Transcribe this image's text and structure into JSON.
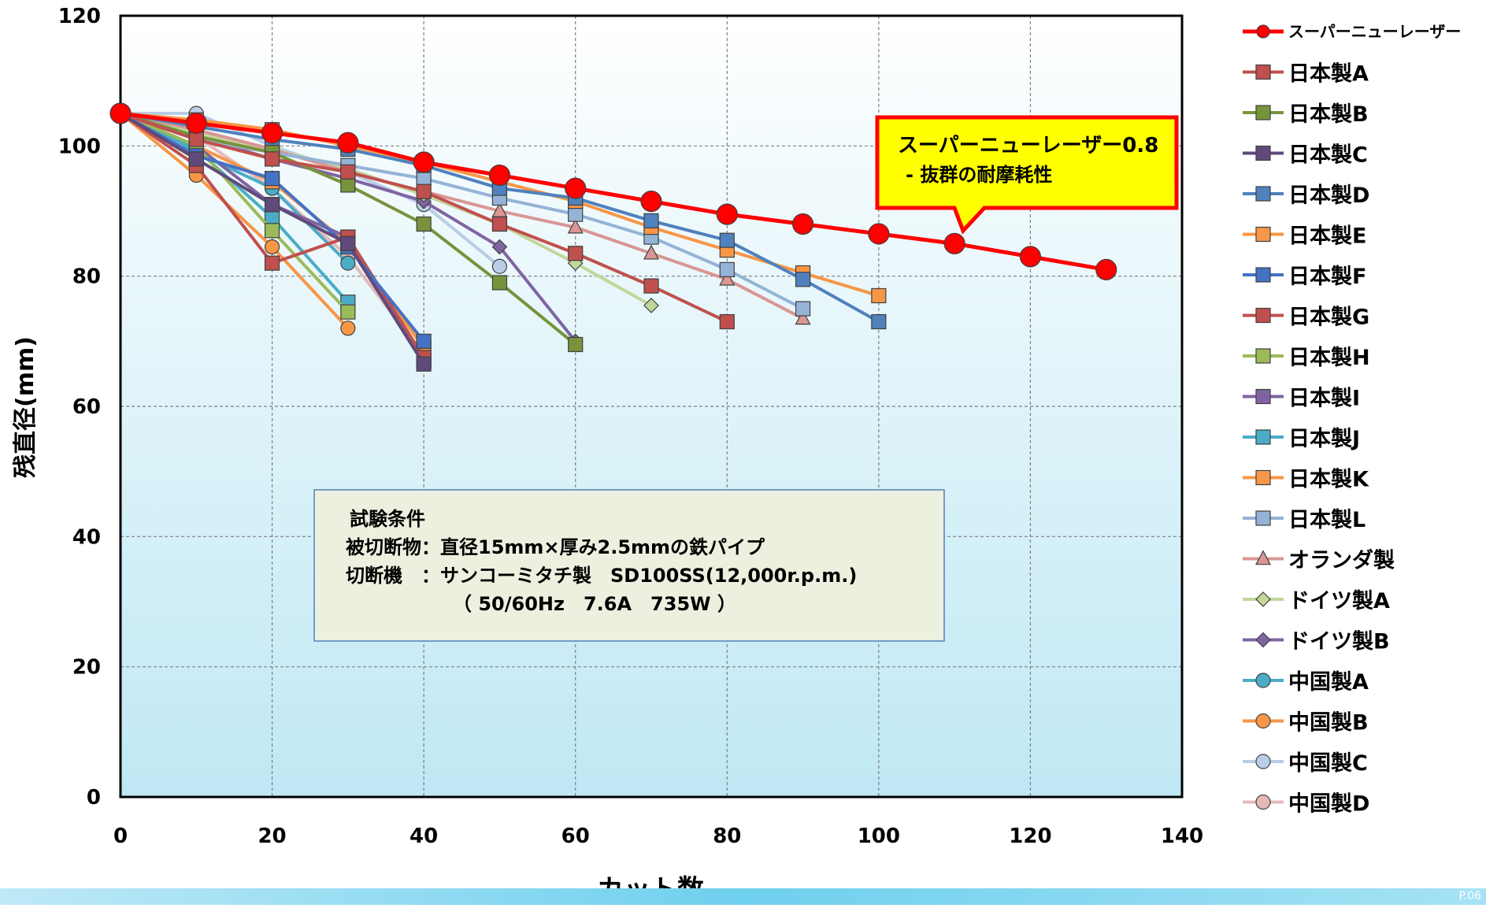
{
  "chart_data": {
    "type": "line",
    "xlabel": "カット数",
    "ylabel": "残直径(mm)",
    "xlim": [
      0,
      140
    ],
    "ylim": [
      0,
      120
    ],
    "xticks": [
      0,
      20,
      40,
      60,
      80,
      100,
      120,
      140
    ],
    "yticks": [
      0,
      20,
      40,
      60,
      80,
      100,
      120
    ],
    "grid": true,
    "legend_position": "right",
    "callout": {
      "line1": "スーパーニューレーザー0.8",
      "line2": "- 抜群の耐摩耗性",
      "fill": "#ffff00",
      "border": "#ff0000"
    },
    "conditions": {
      "title": "試験条件",
      "line1": "被切断物：直径15mm×厚み2.5mmの鉄パイプ",
      "line2": "切断機　：サンコーミタチ製　SD100SS(12,000r.p.m.)",
      "line3": "（ 50/60Hz　7.6A　735W ）"
    },
    "series": [
      {
        "name": "スーパーニューレーザー",
        "color": "#ff0000",
        "marker": "circle",
        "x": [
          0,
          10,
          20,
          30,
          40,
          50,
          60,
          70,
          80,
          90,
          100,
          110,
          120,
          130
        ],
        "y": [
          105,
          103.5,
          102,
          100.5,
          97.5,
          95.5,
          93.5,
          91.5,
          89.5,
          88,
          86.5,
          85,
          83,
          81
        ]
      },
      {
        "name": "日本製A",
        "color": "#c0504d",
        "marker": "square",
        "x": [
          0,
          10,
          20,
          30,
          40,
          50,
          60,
          70,
          80
        ],
        "y": [
          105,
          101,
          98,
          96,
          93,
          88,
          83.5,
          78.5,
          73
        ]
      },
      {
        "name": "日本製B",
        "color": "#77933c",
        "marker": "square",
        "x": [
          0,
          10,
          20,
          30,
          40,
          50,
          60
        ],
        "y": [
          105,
          101.5,
          99,
          94,
          88,
          79,
          69.5
        ]
      },
      {
        "name": "日本製C",
        "color": "#604a7b",
        "marker": "square",
        "x": [
          0,
          10,
          20,
          30,
          40
        ],
        "y": [
          105,
          98,
          91,
          85,
          66.5
        ]
      },
      {
        "name": "日本製D",
        "color": "#4f81bd",
        "marker": "square",
        "x": [
          0,
          10,
          20,
          30,
          40,
          50,
          60,
          70,
          80,
          90,
          100
        ],
        "y": [
          105,
          103,
          101,
          99.5,
          97,
          93.5,
          92,
          88.5,
          85.5,
          79.5,
          73
        ]
      },
      {
        "name": "日本製E",
        "color": "#f79646",
        "marker": "square",
        "x": [
          0,
          10,
          20,
          30,
          40,
          50,
          60,
          70,
          80,
          90,
          100
        ],
        "y": [
          105,
          104,
          102.5,
          100,
          97.5,
          94.5,
          91.5,
          87.5,
          84,
          80.5,
          77
        ]
      },
      {
        "name": "日本製F",
        "color": "#4472c4",
        "marker": "square",
        "x": [
          0,
          10,
          20,
          30,
          40
        ],
        "y": [
          105,
          98.5,
          95,
          84.5,
          70
        ]
      },
      {
        "name": "日本製G",
        "color": "#c0504d",
        "marker": "square",
        "x": [
          0,
          10,
          20,
          30,
          40
        ],
        "y": [
          105,
          97,
          82,
          86,
          67.5
        ]
      },
      {
        "name": "日本製H",
        "color": "#9bbb59",
        "marker": "square",
        "x": [
          0,
          10,
          20,
          30
        ],
        "y": [
          105,
          100,
          87,
          74.5
        ]
      },
      {
        "name": "日本製I",
        "color": "#8064a2",
        "marker": "square",
        "x": [
          0,
          10,
          20,
          30,
          40
        ],
        "y": [
          105,
          100,
          91,
          86,
          67
        ]
      },
      {
        "name": "日本製J",
        "color": "#4bacc6",
        "marker": "square",
        "x": [
          0,
          10,
          20,
          30
        ],
        "y": [
          105,
          99.5,
          89,
          76
        ]
      },
      {
        "name": "日本製K",
        "color": "#f79646",
        "marker": "square",
        "x": [
          0,
          10,
          20,
          30,
          40
        ],
        "y": [
          105,
          100,
          94.5,
          85,
          69
        ]
      },
      {
        "name": "日本製L",
        "color": "#95b3d7",
        "marker": "square",
        "x": [
          0,
          10,
          20,
          30,
          40,
          50,
          60,
          70,
          80,
          90
        ],
        "y": [
          105,
          101,
          99,
          97,
          95,
          92,
          89.5,
          86,
          81,
          75
        ]
      },
      {
        "name": "オランダ製",
        "color": "#d99694",
        "marker": "triangle",
        "x": [
          0,
          10,
          20,
          30,
          40,
          50,
          60,
          70,
          80,
          90
        ],
        "y": [
          105,
          102.5,
          99.5,
          96,
          93,
          90,
          87.5,
          83.5,
          79.5,
          73.5
        ]
      },
      {
        "name": "ドイツ製A",
        "color": "#c3d69b",
        "marker": "diamond",
        "x": [
          0,
          10,
          20,
          30,
          40,
          50,
          60,
          70
        ],
        "y": [
          105,
          102,
          99.5,
          96.5,
          92.5,
          88,
          82,
          75.5
        ]
      },
      {
        "name": "ドイツ製B",
        "color": "#8064a2",
        "marker": "diamond",
        "x": [
          0,
          10,
          20,
          30,
          40,
          50,
          60
        ],
        "y": [
          105,
          101.5,
          98,
          95,
          91.5,
          84.5,
          70
        ]
      },
      {
        "name": "中国製A",
        "color": "#4bacc6",
        "marker": "circle",
        "x": [
          0,
          10,
          20,
          30
        ],
        "y": [
          105,
          99,
          93.5,
          82
        ]
      },
      {
        "name": "中国製B",
        "color": "#f79646",
        "marker": "circle",
        "x": [
          0,
          10,
          20,
          30
        ],
        "y": [
          105,
          95.5,
          84.5,
          72
        ]
      },
      {
        "name": "中国製C",
        "color": "#b9cde5",
        "marker": "circle",
        "x": [
          0,
          10,
          20,
          30,
          40,
          50
        ],
        "y": [
          105,
          105,
          100,
          96,
          91,
          81.5
        ]
      },
      {
        "name": "中国製D",
        "color": "#e6b9b8",
        "marker": "circle",
        "x": [
          0,
          10,
          20,
          30,
          40
        ],
        "y": [
          105,
          101.5,
          93.5,
          83,
          68
        ]
      }
    ]
  },
  "page_number": "P.06"
}
